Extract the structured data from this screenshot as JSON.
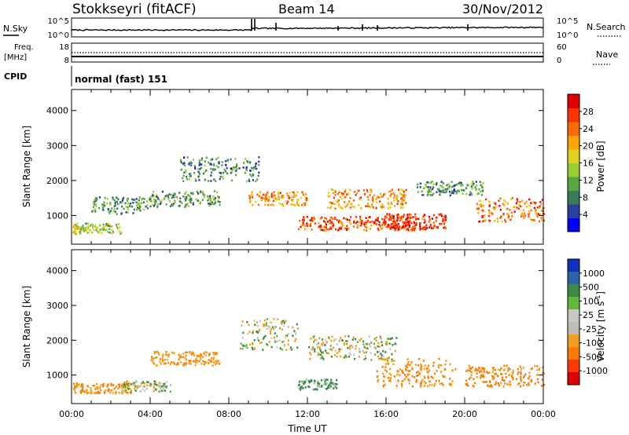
{
  "header": {
    "station": "Stokkseyri (fitACF)",
    "beam": "Beam 14",
    "date": "30/Nov/2012"
  },
  "status_panels": {
    "nsky_label": "N.Sky",
    "nsearch_label": "N.Search",
    "noise_ticks_left": [
      "10^5",
      "10^0"
    ],
    "noise_ticks_right": [
      "10^5",
      "10^0"
    ],
    "freq_label": "Freq.",
    "freq_unit": "[MHz]",
    "freq_ticks": [
      "18",
      "8"
    ],
    "nave_label": "Nave",
    "nave_ticks": [
      "60",
      "0"
    ],
    "cpid_label": "CPID",
    "cpid_value": "normal (fast) 151"
  },
  "colors": {
    "power_scale": [
      "#0000ff",
      "#2b3fa0",
      "#3c7a5c",
      "#57a845",
      "#9acd32",
      "#e0d020",
      "#ffa500",
      "#ff6a00",
      "#ff3300",
      "#e00000"
    ],
    "velocity_scale": [
      "#1030c0",
      "#2c62a8",
      "#3a8a4c",
      "#63b83a",
      "#c8c8c0",
      "#bdbdb6",
      "#f0a020",
      "#ff7a00",
      "#ff3a00",
      "#e00000"
    ],
    "axis": "#000000"
  },
  "chart_data": [
    {
      "type": "heatmap",
      "panel": "power",
      "xlabel": "Time UT",
      "ylabel": "Slant Range [km]",
      "x_ticks": [
        "00:00",
        "04:00",
        "08:00",
        "12:00",
        "16:00",
        "20:00",
        "00:00"
      ],
      "y_ticks": [
        1000,
        2000,
        3000,
        4000
      ],
      "ylim": [
        180,
        4600
      ],
      "colorbar_label": "Power [dB]",
      "colorbar_ticks": [
        4,
        8,
        12,
        16,
        20,
        24,
        28
      ],
      "colorbar_range": [
        0,
        32
      ],
      "features": [
        {
          "start_hr": 0.0,
          "end_hr": 2.5,
          "range_km": 650,
          "width_km": 300,
          "power_db": 14
        },
        {
          "start_hr": 1.0,
          "end_hr": 4.0,
          "range_km": 1300,
          "width_km": 500,
          "power_db": 10
        },
        {
          "start_hr": 4.0,
          "end_hr": 7.5,
          "range_km": 1500,
          "width_km": 450,
          "power_db": 11
        },
        {
          "start_hr": 5.5,
          "end_hr": 9.5,
          "range_km": 2350,
          "width_km": 700,
          "power_db": 9
        },
        {
          "start_hr": 9.0,
          "end_hr": 12.0,
          "range_km": 1500,
          "width_km": 400,
          "power_db": 22
        },
        {
          "start_hr": 11.5,
          "end_hr": 17.5,
          "range_km": 800,
          "width_km": 400,
          "power_db": 26
        },
        {
          "start_hr": 13.0,
          "end_hr": 17.0,
          "range_km": 1500,
          "width_km": 550,
          "power_db": 22
        },
        {
          "start_hr": 16.0,
          "end_hr": 19.0,
          "range_km": 850,
          "width_km": 450,
          "power_db": 28
        },
        {
          "start_hr": 17.5,
          "end_hr": 21.0,
          "range_km": 1800,
          "width_km": 400,
          "power_db": 10
        },
        {
          "start_hr": 20.5,
          "end_hr": 24.0,
          "range_km": 1200,
          "width_km": 700,
          "power_db": 24
        }
      ]
    },
    {
      "type": "heatmap",
      "panel": "velocity",
      "xlabel": "Time UT",
      "ylabel": "Slant Range [km]",
      "x_ticks": [
        "00:00",
        "04:00",
        "08:00",
        "12:00",
        "16:00",
        "20:00",
        "00:00"
      ],
      "y_ticks": [
        1000,
        2000,
        3000,
        4000
      ],
      "ylim": [
        180,
        4600
      ],
      "colorbar_label": "Velocity [m s^-1]",
      "colorbar_ticks": [
        "1000",
        "500",
        "100",
        "25",
        "-25",
        "-100",
        "-500",
        "-1000"
      ],
      "features": [
        {
          "start_hr": 0.0,
          "end_hr": 3.0,
          "range_km": 650,
          "width_km": 300,
          "velocity_ms": -300
        },
        {
          "start_hr": 2.5,
          "end_hr": 5.0,
          "range_km": 700,
          "width_km": 300,
          "velocity_ms": 0
        },
        {
          "start_hr": 4.0,
          "end_hr": 7.5,
          "range_km": 1500,
          "width_km": 400,
          "velocity_ms": -250
        },
        {
          "start_hr": 8.5,
          "end_hr": 11.5,
          "range_km": 2200,
          "width_km": 900,
          "velocity_ms": 0
        },
        {
          "start_hr": 11.5,
          "end_hr": 13.5,
          "range_km": 750,
          "width_km": 300,
          "velocity_ms": 100
        },
        {
          "start_hr": 12.0,
          "end_hr": 16.5,
          "range_km": 1800,
          "width_km": 700,
          "velocity_ms": 0
        },
        {
          "start_hr": 15.5,
          "end_hr": 19.5,
          "range_km": 1100,
          "width_km": 800,
          "velocity_ms": -300
        },
        {
          "start_hr": 20.0,
          "end_hr": 24.0,
          "range_km": 1000,
          "width_km": 600,
          "velocity_ms": -400
        }
      ]
    }
  ]
}
